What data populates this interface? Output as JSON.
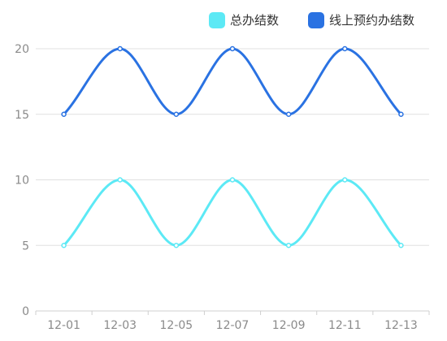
{
  "chart_data": {
    "type": "line",
    "categories": [
      "12-01",
      "12-03",
      "12-05",
      "12-07",
      "12-09",
      "12-11",
      "12-13"
    ],
    "series": [
      {
        "name": "总办结数",
        "values": [
          5,
          10,
          5,
          10,
          5,
          10,
          5
        ],
        "color": "#5ce9f5"
      },
      {
        "name": "线上预约办结数",
        "values": [
          15,
          20,
          15,
          20,
          15,
          20,
          15
        ],
        "color": "#2a72e2"
      }
    ],
    "yticks": [
      "0",
      "5",
      "10",
      "15",
      "20"
    ],
    "ylim": [
      0,
      20
    ],
    "smooth": true,
    "grid": "horizontal",
    "legend_position": "top-right"
  }
}
